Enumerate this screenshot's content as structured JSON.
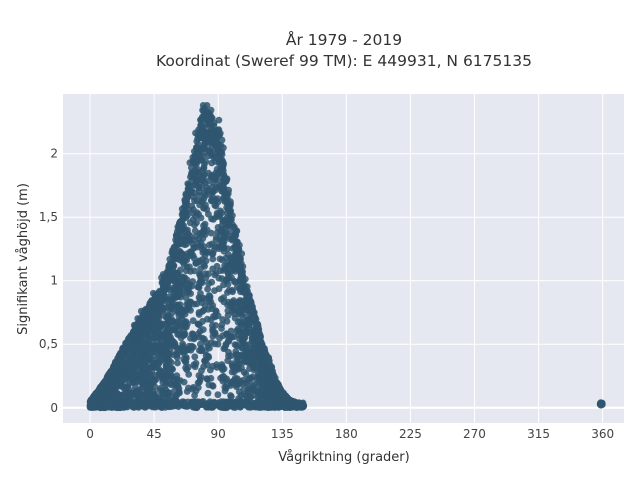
{
  "chart_data": {
    "type": "scatter",
    "title": [
      "År 1979 - 2019",
      "Koordinat (Sweref 99 TM): E 449931, N 6175135"
    ],
    "xlabel": "Vågriktning (grader)",
    "ylabel": "Signifikant våghöjd (m)",
    "xlim": [
      -19,
      375
    ],
    "ylim": [
      -0.12,
      2.47
    ],
    "x_ticks": [
      0,
      45,
      90,
      135,
      180,
      225,
      270,
      315,
      360
    ],
    "x_tick_labels": [
      "0",
      "45",
      "90",
      "135",
      "180",
      "225",
      "270",
      "315",
      "360"
    ],
    "y_ticks": [
      0,
      0.5,
      1,
      1.5,
      2
    ],
    "y_tick_labels": [
      "0",
      "0,5",
      "1",
      "1,5",
      "2"
    ],
    "grid": true,
    "legend": "none",
    "marker_color": "#2f5670",
    "background_color": "#e5e8f0",
    "envelope": {
      "x": [
        0,
        10,
        20,
        30,
        40,
        50,
        55,
        60,
        65,
        70,
        75,
        80,
        85,
        90,
        95,
        100,
        105,
        110,
        115,
        120,
        125,
        130,
        135,
        140,
        145,
        150
      ],
      "y": [
        0.05,
        0.2,
        0.4,
        0.6,
        0.78,
        0.95,
        1.1,
        1.3,
        1.55,
        1.8,
        2.1,
        2.38,
        2.28,
        2.15,
        1.85,
        1.5,
        1.2,
        0.95,
        0.75,
        0.55,
        0.38,
        0.22,
        0.12,
        0.06,
        0.04,
        0.02
      ]
    },
    "outlier_cluster": {
      "x": 359,
      "y": [
        0.02,
        0.04
      ]
    }
  }
}
